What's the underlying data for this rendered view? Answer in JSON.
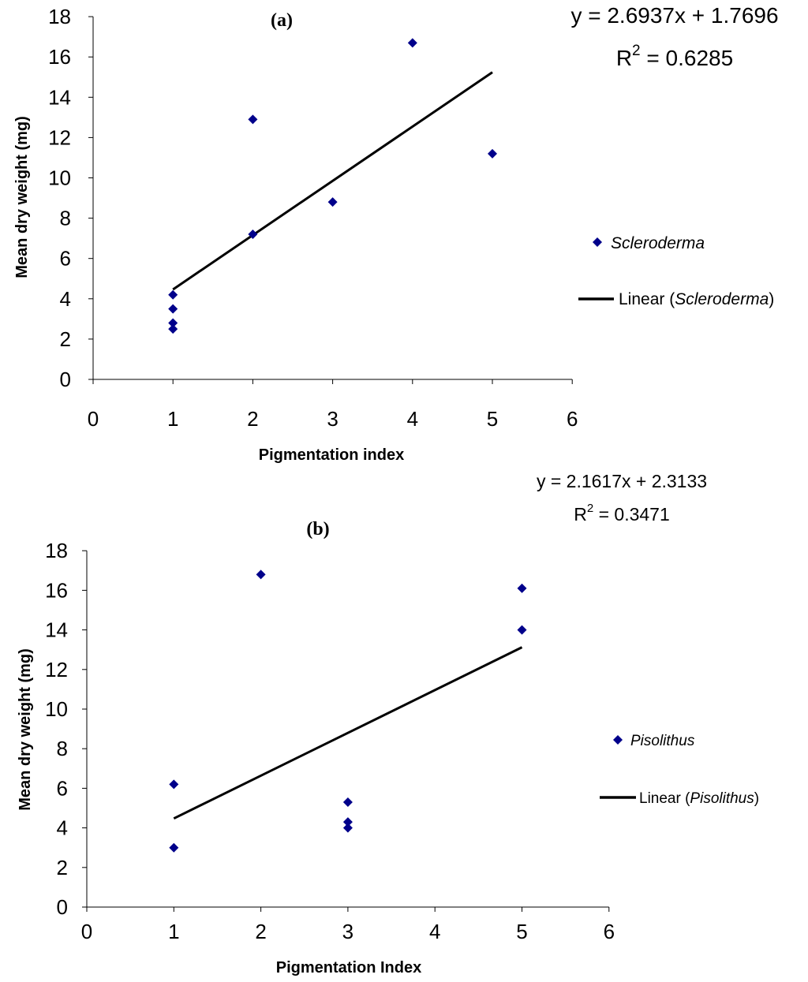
{
  "chart_data": [
    {
      "panel": "(a)",
      "type": "scatter",
      "xlabel": "Pigmentation index",
      "ylabel": "Mean dry weight (mg)",
      "xlim": [
        0,
        6
      ],
      "ylim": [
        0,
        18
      ],
      "xticks": [
        0,
        1,
        2,
        3,
        4,
        5,
        6
      ],
      "yticks": [
        0,
        2,
        4,
        6,
        8,
        10,
        12,
        14,
        16,
        18
      ],
      "grid": false,
      "legend_position": "right",
      "series": [
        {
          "name": "Scleroderma",
          "kind": "points",
          "color": "#00008b",
          "marker": "diamond",
          "points": [
            [
              1,
              2.5
            ],
            [
              1,
              2.8
            ],
            [
              1,
              3.5
            ],
            [
              1,
              4.2
            ],
            [
              2,
              7.2
            ],
            [
              2,
              12.9
            ],
            [
              3,
              8.8
            ],
            [
              4,
              16.7
            ],
            [
              5,
              11.2
            ]
          ]
        },
        {
          "name_prefix": "Linear (",
          "name_italic": "Scleroderma",
          "name_suffix": ")",
          "kind": "trendline",
          "color": "#000000",
          "slope": 2.6937,
          "intercept": 1.7696,
          "x_range": [
            1,
            5
          ]
        }
      ],
      "equation": "y = 2.6937x + 1.7696",
      "r2_label": "R",
      "r2_exp": "2",
      "r2_value": " = 0.6285"
    },
    {
      "panel": "(b)",
      "type": "scatter",
      "xlabel": "Pigmentation Index",
      "ylabel": "Mean dry weight (mg)",
      "xlim": [
        0,
        6
      ],
      "ylim": [
        0,
        18
      ],
      "xticks": [
        0,
        1,
        2,
        3,
        4,
        5,
        6
      ],
      "yticks": [
        0,
        2,
        4,
        6,
        8,
        10,
        12,
        14,
        16,
        18
      ],
      "grid": false,
      "legend_position": "right",
      "series": [
        {
          "name": "Pisolithus",
          "kind": "points",
          "color": "#00008b",
          "marker": "diamond",
          "points": [
            [
              1,
              3.0
            ],
            [
              1,
              6.2
            ],
            [
              2,
              16.8
            ],
            [
              3,
              4.0
            ],
            [
              3,
              4.3
            ],
            [
              3,
              5.3
            ],
            [
              5,
              14.0
            ],
            [
              5,
              16.1
            ]
          ]
        },
        {
          "name_prefix": "Linear (",
          "name_italic": "Pisolithus",
          "name_suffix": ")",
          "kind": "trendline",
          "color": "#000000",
          "slope": 2.1617,
          "intercept": 2.3133,
          "x_range": [
            1,
            5
          ]
        }
      ],
      "equation": "y = 2.1617x + 2.3133",
      "r2_label": "R",
      "r2_exp": "2",
      "r2_value": " = 0.3471"
    }
  ]
}
